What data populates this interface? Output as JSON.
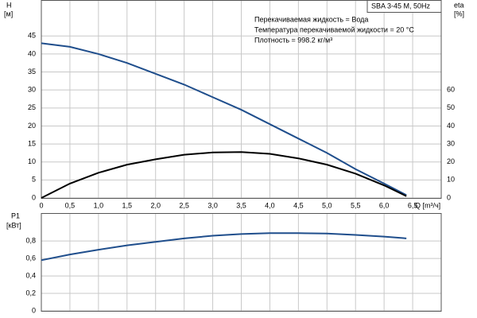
{
  "chart_data": [
    {
      "type": "line",
      "title": "SBA 3-45 M, 50Hz",
      "annotations": [
        "Перекачиваемая жидкость = Вода",
        "Температура перекачиваемой жидкости = 20 °C",
        "Плотность = 998.2 кг/м³"
      ],
      "y_label": "H",
      "y_unit": "[м]",
      "y2_label": "eta",
      "y2_unit": "[%]",
      "x_label": "Q [m³/ч]",
      "x": [
        0,
        0.5,
        1,
        1.5,
        2,
        2.5,
        3,
        3.5,
        4,
        4.5,
        5,
        5.5,
        6,
        6.39
      ],
      "series": [
        {
          "color": "#1f4e8c",
          "values": [
            43,
            42,
            40,
            37.5,
            34.5,
            31.5,
            28,
            24.5,
            20.5,
            16.5,
            12.5,
            8,
            4,
            0.8
          ]
        },
        {
          "color": "#000000",
          "axis": "y2",
          "values": [
            0,
            8,
            14,
            18.5,
            21.5,
            24,
            25.3,
            25.5,
            24.5,
            22,
            18.5,
            13.5,
            7,
            1
          ]
        }
      ],
      "xlim": [
        0,
        7
      ],
      "xticks": [
        0,
        {
          "value": 0.5,
          "label": "0,5"
        },
        {
          "value": 1,
          "label": "1,0"
        },
        {
          "value": 1.5,
          "label": "1,5"
        },
        {
          "value": 2,
          "label": "2,0"
        },
        {
          "value": 2.5,
          "label": "2,5"
        },
        {
          "value": 3,
          "label": "3,0"
        },
        {
          "value": 3.5,
          "label": "3,5"
        },
        {
          "value": 4,
          "label": "4,0"
        },
        {
          "value": 4.5,
          "label": "4,5"
        },
        {
          "value": 5,
          "label": "5,0"
        },
        {
          "value": 5.5,
          "label": "5,5"
        },
        {
          "value": 6,
          "label": "6,0"
        },
        {
          "value": 6.5,
          "label": "6,5"
        }
      ],
      "ylim": [
        0,
        55
      ],
      "yticks": [
        0,
        5,
        10,
        15,
        20,
        25,
        30,
        35,
        40,
        45
      ],
      "y2lim": [
        0,
        110
      ],
      "y2ticks": [
        0,
        10,
        20,
        30,
        40,
        50,
        60
      ],
      "grid": true
    },
    {
      "type": "line",
      "y_label": "P1",
      "y_unit": "[кВт]",
      "x": [
        0,
        0.5,
        1,
        1.5,
        2,
        2.5,
        3,
        3.5,
        4,
        4.5,
        5,
        5.5,
        6,
        6.39
      ],
      "series": [
        {
          "color": "#1f4e8c",
          "values": [
            0.58,
            0.645,
            0.7,
            0.75,
            0.79,
            0.83,
            0.86,
            0.88,
            0.89,
            0.89,
            0.885,
            0.87,
            0.85,
            0.83
          ]
        }
      ],
      "xlim": [
        0,
        7
      ],
      "xticks": [
        0,
        0.5,
        1,
        1.5,
        2,
        2.5,
        3,
        3.5,
        4,
        4.5,
        5,
        5.5,
        6,
        6.5
      ],
      "ylim": [
        0,
        1.12
      ],
      "yticks": [
        0,
        {
          "value": 0.2,
          "label": "0,2"
        },
        {
          "value": 0.4,
          "label": "0,4"
        },
        {
          "value": 0.6,
          "label": "0,6"
        },
        {
          "value": 0.8,
          "label": "0,8"
        }
      ],
      "grid": true
    }
  ]
}
